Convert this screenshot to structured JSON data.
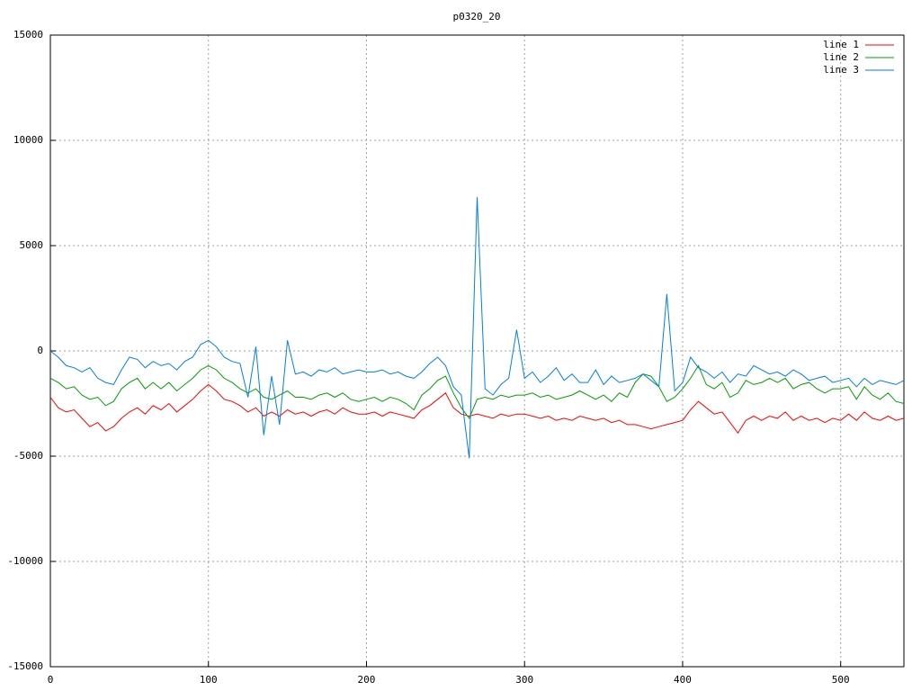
{
  "chart_data": {
    "type": "line",
    "title": "p0320_20",
    "x": [
      0,
      5,
      10,
      15,
      20,
      25,
      30,
      35,
      40,
      45,
      50,
      55,
      60,
      65,
      70,
      75,
      80,
      85,
      90,
      95,
      100,
      105,
      110,
      115,
      120,
      125,
      130,
      135,
      140,
      145,
      150,
      155,
      160,
      165,
      170,
      175,
      180,
      185,
      190,
      195,
      200,
      205,
      210,
      215,
      220,
      225,
      230,
      235,
      240,
      245,
      250,
      255,
      260,
      265,
      270,
      275,
      280,
      285,
      290,
      295,
      300,
      305,
      310,
      315,
      320,
      325,
      330,
      335,
      340,
      345,
      350,
      355,
      360,
      365,
      370,
      375,
      380,
      385,
      390,
      395,
      400,
      405,
      410,
      415,
      420,
      425,
      430,
      435,
      440,
      445,
      450,
      455,
      460,
      465,
      470,
      475,
      480,
      485,
      490,
      495,
      500,
      505,
      510,
      515,
      520,
      525,
      530,
      535,
      540
    ],
    "series": [
      {
        "name": "line 1",
        "color": "#ff0000",
        "values": [
          -2200,
          -2700,
          -2900,
          -2800,
          -3200,
          -3600,
          -3400,
          -3800,
          -3600,
          -3200,
          -2900,
          -2700,
          -3000,
          -2600,
          -2800,
          -2500,
          -2900,
          -2600,
          -2300,
          -1900,
          -1600,
          -1900,
          -2300,
          -2400,
          -2600,
          -2900,
          -2700,
          -3100,
          -2900,
          -3100,
          -2800,
          -3000,
          -2900,
          -3100,
          -2900,
          -2800,
          -3000,
          -2700,
          -2900,
          -3000,
          -3000,
          -2900,
          -3100,
          -2900,
          -3000,
          -3100,
          -3200,
          -2800,
          -2600,
          -2300,
          -2000,
          -2700,
          -3000,
          -3100,
          -3000,
          -3100,
          -3200,
          -3000,
          -3100,
          -3000,
          -3000,
          -3100,
          -3200,
          -3100,
          -3300,
          -3200,
          -3300,
          -3100,
          -3200,
          -3300,
          -3200,
          -3400,
          -3300,
          -3500,
          -3500,
          -3600,
          -3700,
          -3600,
          -3500,
          -3400,
          -3300,
          -2800,
          -2400,
          -2700,
          -3000,
          -2900,
          -3400,
          -3900,
          -3300,
          -3100,
          -3300,
          -3100,
          -3200,
          -2900,
          -3300,
          -3100,
          -3300,
          -3200,
          -3400,
          -3200,
          -3300,
          -3000,
          -3300,
          -2900,
          -3200,
          -3300,
          -3100,
          -3300,
          -3200
        ]
      },
      {
        "name": "line 2",
        "color": "#00a000",
        "values": [
          -1300,
          -1500,
          -1800,
          -1700,
          -2100,
          -2300,
          -2200,
          -2600,
          -2400,
          -1800,
          -1500,
          -1300,
          -1800,
          -1500,
          -1800,
          -1500,
          -1900,
          -1600,
          -1300,
          -900,
          -700,
          -900,
          -1300,
          -1500,
          -1800,
          -2000,
          -1800,
          -2200,
          -2300,
          -2100,
          -1900,
          -2200,
          -2200,
          -2300,
          -2100,
          -2000,
          -2200,
          -2000,
          -2300,
          -2400,
          -2300,
          -2200,
          -2400,
          -2200,
          -2300,
          -2500,
          -2800,
          -2100,
          -1800,
          -1400,
          -1200,
          -2000,
          -2700,
          -3200,
          -2300,
          -2200,
          -2300,
          -2100,
          -2200,
          -2100,
          -2100,
          -2000,
          -2200,
          -2100,
          -2300,
          -2200,
          -2100,
          -1900,
          -2100,
          -2300,
          -2100,
          -2400,
          -2000,
          -2200,
          -1500,
          -1100,
          -1200,
          -1700,
          -2400,
          -2200,
          -1800,
          -1300,
          -700,
          -1600,
          -1800,
          -1500,
          -2200,
          -2000,
          -1400,
          -1600,
          -1500,
          -1300,
          -1500,
          -1300,
          -1800,
          -1600,
          -1500,
          -1800,
          -2000,
          -1800,
          -1800,
          -1700,
          -2300,
          -1700,
          -2100,
          -2300,
          -2000,
          -2400,
          -2500
        ]
      },
      {
        "name": "line 3",
        "color": "#0080e0",
        "values": [
          0,
          -300,
          -700,
          -800,
          -1000,
          -800,
          -1300,
          -1500,
          -1600,
          -900,
          -300,
          -400,
          -800,
          -500,
          -700,
          -600,
          -900,
          -500,
          -300,
          300,
          500,
          200,
          -300,
          -500,
          -600,
          -2200,
          200,
          -4000,
          -1200,
          -3500,
          500,
          -1100,
          -1000,
          -1200,
          -900,
          -1000,
          -800,
          -1100,
          -1000,
          -900,
          -1000,
          -1000,
          -900,
          -1100,
          -1000,
          -1200,
          -1300,
          -1000,
          -600,
          -300,
          -700,
          -1700,
          -2100,
          -5100,
          7300,
          -1800,
          -2100,
          -1600,
          -1300,
          1000,
          -1300,
          -1000,
          -1500,
          -1200,
          -800,
          -1400,
          -1100,
          -1500,
          -1500,
          -900,
          -1600,
          -1200,
          -1500,
          -1400,
          -1300,
          -1100,
          -1400,
          -1700,
          2700,
          -1900,
          -1500,
          -300,
          -800,
          -1000,
          -1300,
          -1000,
          -1500,
          -1100,
          -1200,
          -700,
          -900,
          -1100,
          -1000,
          -1200,
          -900,
          -1100,
          -1400,
          -1300,
          -1200,
          -1500,
          -1400,
          -1300,
          -1700,
          -1300,
          -1600,
          -1400,
          -1500,
          -1600,
          -1400
        ]
      }
    ],
    "xlim": [
      0,
      540
    ],
    "xticks": [
      0,
      100,
      200,
      300,
      400,
      500
    ],
    "ylim": [
      -15000,
      15000
    ],
    "yticks": [
      -15000,
      -10000,
      -5000,
      0,
      5000,
      10000,
      15000
    ],
    "grid": true,
    "legend": "top-right"
  }
}
